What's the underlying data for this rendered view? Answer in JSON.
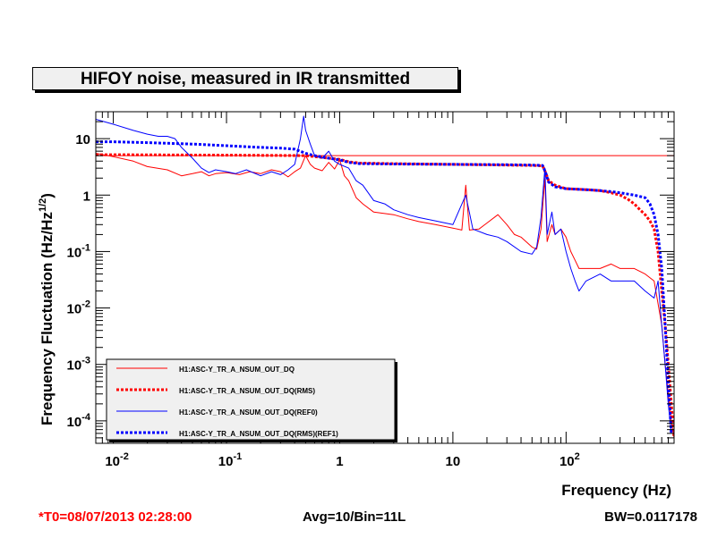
{
  "chart_data": {
    "type": "line",
    "title": "HIFOY noise, measured in IR transmitted",
    "xlabel": "Frequency (Hz)",
    "ylabel": "Frequency Fluctuation (Hz/Hz",
    "ylabel_sup": "1/2",
    "ylabel_close": ")",
    "xscale": "log",
    "yscale": "log",
    "xlim": [
      0.007,
      900
    ],
    "ylim": [
      4e-05,
      30
    ],
    "x_ticks": [
      {
        "value": 0.01,
        "base": "10",
        "exp": "-2"
      },
      {
        "value": 0.1,
        "base": "10",
        "exp": "-1"
      },
      {
        "value": 1,
        "base": "1",
        "exp": ""
      },
      {
        "value": 10,
        "base": "10",
        "exp": ""
      },
      {
        "value": 100,
        "base": "10",
        "exp": "2"
      }
    ],
    "y_ticks": [
      {
        "value": 0.0001,
        "base": "10",
        "exp": "-4"
      },
      {
        "value": 0.001,
        "base": "10",
        "exp": "-3"
      },
      {
        "value": 0.01,
        "base": "10",
        "exp": "-2"
      },
      {
        "value": 0.1,
        "base": "10",
        "exp": "-1"
      },
      {
        "value": 1,
        "base": "1",
        "exp": ""
      },
      {
        "value": 10,
        "base": "10",
        "exp": ""
      }
    ],
    "grid": false,
    "legend_position": "bottom-left",
    "reference_line": {
      "y": 5.0,
      "color": "#ff0000"
    },
    "series": [
      {
        "name": "H1:ASC-Y_TR_A_NSUM_OUT_DQ",
        "color": "#ff0000",
        "style": "solid",
        "points": [
          [
            0.007,
            5.5
          ],
          [
            0.01,
            4.8
          ],
          [
            0.015,
            4.0
          ],
          [
            0.02,
            3.2
          ],
          [
            0.03,
            2.8
          ],
          [
            0.04,
            2.2
          ],
          [
            0.05,
            2.4
          ],
          [
            0.06,
            2.6
          ],
          [
            0.07,
            2.2
          ],
          [
            0.08,
            2.4
          ],
          [
            0.1,
            2.5
          ],
          [
            0.13,
            2.3
          ],
          [
            0.16,
            2.6
          ],
          [
            0.2,
            2.4
          ],
          [
            0.25,
            2.8
          ],
          [
            0.3,
            2.6
          ],
          [
            0.35,
            2.1
          ],
          [
            0.4,
            2.6
          ],
          [
            0.45,
            3.0
          ],
          [
            0.5,
            5.0
          ],
          [
            0.55,
            3.5
          ],
          [
            0.6,
            3.0
          ],
          [
            0.7,
            2.7
          ],
          [
            0.8,
            3.8
          ],
          [
            0.9,
            2.9
          ],
          [
            1.0,
            4.2
          ],
          [
            1.1,
            2.2
          ],
          [
            1.2,
            1.8
          ],
          [
            1.4,
            0.9
          ],
          [
            1.6,
            0.7
          ],
          [
            2.0,
            0.5
          ],
          [
            3.0,
            0.45
          ],
          [
            4.0,
            0.38
          ],
          [
            5.0,
            0.34
          ],
          [
            7.0,
            0.3
          ],
          [
            10.0,
            0.26
          ],
          [
            12.0,
            0.24
          ],
          [
            13.0,
            1.5
          ],
          [
            14.0,
            0.24
          ],
          [
            17.0,
            0.25
          ],
          [
            20.0,
            0.32
          ],
          [
            25.0,
            0.45
          ],
          [
            30.0,
            0.3
          ],
          [
            35.0,
            0.2
          ],
          [
            40.0,
            0.18
          ],
          [
            50.0,
            0.12
          ],
          [
            55.0,
            0.11
          ],
          [
            60.0,
            0.25
          ],
          [
            65.0,
            2.0
          ],
          [
            68.0,
            0.15
          ],
          [
            75.0,
            0.3
          ],
          [
            80.0,
            0.2
          ],
          [
            90.0,
            0.25
          ],
          [
            100.0,
            0.18
          ],
          [
            110.0,
            0.1
          ],
          [
            120.0,
            0.07
          ],
          [
            130.0,
            0.05
          ],
          [
            150.0,
            0.05
          ],
          [
            200.0,
            0.05
          ],
          [
            250.0,
            0.06
          ],
          [
            300.0,
            0.05
          ],
          [
            400.0,
            0.05
          ],
          [
            500.0,
            0.04
          ],
          [
            600.0,
            0.03
          ],
          [
            700.0,
            0.005
          ],
          [
            750.0,
            0.001
          ],
          [
            800.0,
            0.0003
          ],
          [
            850.0,
            0.0001
          ],
          [
            900.0,
            5e-05
          ]
        ]
      },
      {
        "name": "H1:ASC-Y_TR_A_NSUM_OUT_DQ(RMS)",
        "color": "#ff0000",
        "style": "dotted",
        "points": [
          [
            0.007,
            5.2
          ],
          [
            0.01,
            5.2
          ],
          [
            0.1,
            5.1
          ],
          [
            0.5,
            5.0
          ],
          [
            0.8,
            4.5
          ],
          [
            1.0,
            4.3
          ],
          [
            1.2,
            3.9
          ],
          [
            1.5,
            3.7
          ],
          [
            3.0,
            3.6
          ],
          [
            10.0,
            3.5
          ],
          [
            30.0,
            3.4
          ],
          [
            50.0,
            3.35
          ],
          [
            62.0,
            3.3
          ],
          [
            66.0,
            2.5
          ],
          [
            70.0,
            1.8
          ],
          [
            80.0,
            1.5
          ],
          [
            100.0,
            1.3
          ],
          [
            150.0,
            1.25
          ],
          [
            200.0,
            1.2
          ],
          [
            250.0,
            1.1
          ],
          [
            300.0,
            1.0
          ],
          [
            350.0,
            0.85
          ],
          [
            400.0,
            0.7
          ],
          [
            450.0,
            0.55
          ],
          [
            500.0,
            0.45
          ],
          [
            550.0,
            0.35
          ],
          [
            600.0,
            0.25
          ],
          [
            650.0,
            0.1
          ],
          [
            700.0,
            0.02
          ],
          [
            750.0,
            0.005
          ],
          [
            800.0,
            0.001
          ],
          [
            850.0,
            0.0002
          ],
          [
            900.0,
            5e-05
          ]
        ]
      },
      {
        "name": "H1:ASC-Y_TR_A_NSUM_OUT_DQ(REF0)",
        "color": "#0000ff",
        "style": "solid",
        "points": [
          [
            0.007,
            22.0
          ],
          [
            0.01,
            18.0
          ],
          [
            0.015,
            14.0
          ],
          [
            0.02,
            12.0
          ],
          [
            0.025,
            11.0
          ],
          [
            0.03,
            11.0
          ],
          [
            0.035,
            10.0
          ],
          [
            0.04,
            7.0
          ],
          [
            0.05,
            4.5
          ],
          [
            0.06,
            3.0
          ],
          [
            0.07,
            2.5
          ],
          [
            0.08,
            2.8
          ],
          [
            0.1,
            2.6
          ],
          [
            0.12,
            2.4
          ],
          [
            0.15,
            2.8
          ],
          [
            0.2,
            2.2
          ],
          [
            0.25,
            2.6
          ],
          [
            0.3,
            2.3
          ],
          [
            0.35,
            2.8
          ],
          [
            0.4,
            3.5
          ],
          [
            0.45,
            10.0
          ],
          [
            0.48,
            25.0
          ],
          [
            0.5,
            14.0
          ],
          [
            0.55,
            8.0
          ],
          [
            0.6,
            5.0
          ],
          [
            0.7,
            4.5
          ],
          [
            0.8,
            6.0
          ],
          [
            0.9,
            4.0
          ],
          [
            1.0,
            3.5
          ],
          [
            1.2,
            3.0
          ],
          [
            1.4,
            1.8
          ],
          [
            1.6,
            1.5
          ],
          [
            2.0,
            0.8
          ],
          [
            2.5,
            0.7
          ],
          [
            3.0,
            0.55
          ],
          [
            4.0,
            0.45
          ],
          [
            5.0,
            0.4
          ],
          [
            7.0,
            0.35
          ],
          [
            10.0,
            0.3
          ],
          [
            13.0,
            1.0
          ],
          [
            15.0,
            0.25
          ],
          [
            20.0,
            0.2
          ],
          [
            25.0,
            0.18
          ],
          [
            30.0,
            0.15
          ],
          [
            40.0,
            0.1
          ],
          [
            50.0,
            0.09
          ],
          [
            55.0,
            0.12
          ],
          [
            60.0,
            0.4
          ],
          [
            65.0,
            3.0
          ],
          [
            68.0,
            0.2
          ],
          [
            75.0,
            0.5
          ],
          [
            80.0,
            0.2
          ],
          [
            90.0,
            0.25
          ],
          [
            100.0,
            0.1
          ],
          [
            110.0,
            0.05
          ],
          [
            120.0,
            0.03
          ],
          [
            130.0,
            0.02
          ],
          [
            150.0,
            0.03
          ],
          [
            200.0,
            0.04
          ],
          [
            250.0,
            0.03
          ],
          [
            300.0,
            0.03
          ],
          [
            400.0,
            0.03
          ],
          [
            500.0,
            0.02
          ],
          [
            600.0,
            0.015
          ],
          [
            650.0,
            0.03
          ],
          [
            700.0,
            0.005
          ],
          [
            750.0,
            0.001
          ],
          [
            800.0,
            0.0002
          ],
          [
            850.0,
            6e-05
          ]
        ]
      },
      {
        "name": "H1:ASC-Y_TR_A_NSUM_OUT_DQ(RMS)(REF1)",
        "color": "#0000ff",
        "style": "dotted",
        "points": [
          [
            0.007,
            8.8
          ],
          [
            0.01,
            8.8
          ],
          [
            0.02,
            8.5
          ],
          [
            0.05,
            8.0
          ],
          [
            0.1,
            7.5
          ],
          [
            0.2,
            7.0
          ],
          [
            0.3,
            6.8
          ],
          [
            0.4,
            6.5
          ],
          [
            0.5,
            5.5
          ],
          [
            0.6,
            5.0
          ],
          [
            0.8,
            4.5
          ],
          [
            1.0,
            4.2
          ],
          [
            1.2,
            3.8
          ],
          [
            1.5,
            3.6
          ],
          [
            3.0,
            3.55
          ],
          [
            10.0,
            3.5
          ],
          [
            30.0,
            3.45
          ],
          [
            50.0,
            3.4
          ],
          [
            62.0,
            3.35
          ],
          [
            66.0,
            2.5
          ],
          [
            70.0,
            1.7
          ],
          [
            80.0,
            1.4
          ],
          [
            100.0,
            1.3
          ],
          [
            150.0,
            1.25
          ],
          [
            200.0,
            1.2
          ],
          [
            250.0,
            1.15
          ],
          [
            300.0,
            1.1
          ],
          [
            400.0,
            1.0
          ],
          [
            500.0,
            0.9
          ],
          [
            550.0,
            0.7
          ],
          [
            600.0,
            0.45
          ],
          [
            650.0,
            0.2
          ],
          [
            700.0,
            0.05
          ],
          [
            750.0,
            0.005
          ],
          [
            800.0,
            0.0005
          ],
          [
            850.0,
            6e-05
          ]
        ]
      }
    ]
  },
  "footer": {
    "t0": "*T0=08/07/2013 02:28:00",
    "t0_color": "#ff0000",
    "avg": "Avg=10/Bin=11L",
    "bw": "BW=0.0117178"
  }
}
